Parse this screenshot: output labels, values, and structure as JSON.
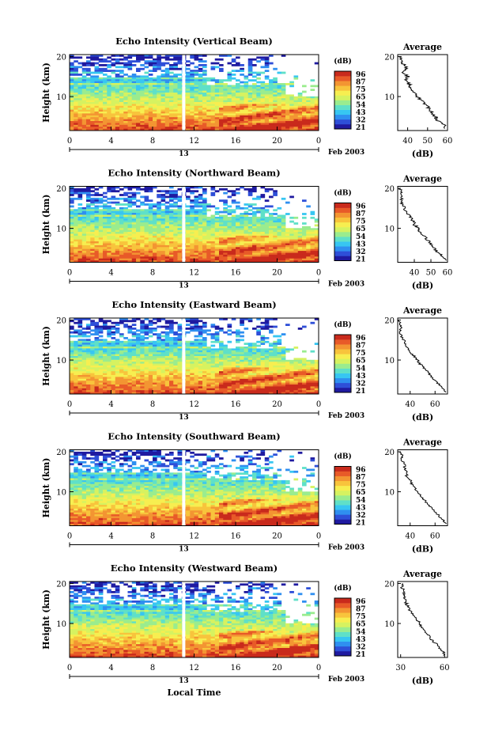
{
  "figure": {
    "xlabel": "Local Time",
    "date_label": "Feb 2003",
    "date_tick": "13",
    "colorbar_unit": "(dB)",
    "colorbar_ticks": [
      "96",
      "87",
      "75",
      "65",
      "54",
      "43",
      "32",
      "21"
    ],
    "profile_title": "Average",
    "profile_xlabel": "(dB)"
  },
  "colors": {
    "scale": [
      "#1f1aa0",
      "#2e4fd8",
      "#2f8ff0",
      "#37c6f2",
      "#5fe0c8",
      "#9aec8e",
      "#d6f260",
      "#f7ee50",
      "#f8c43c",
      "#f39532",
      "#e85a28",
      "#c92a1c"
    ],
    "divider": "#ffffff",
    "frame": "#000000"
  },
  "chart_data": [
    {
      "type": "heatmap",
      "title": "Echo Intensity (Vertical Beam)",
      "ylabel": "Height (km)",
      "xlim": [
        0,
        24
      ],
      "ylim": [
        1.5,
        20.5
      ],
      "x_ticks": [
        "0",
        "4",
        "8",
        "12",
        "16",
        "20",
        "0"
      ],
      "y_ticks": [
        "20",
        "10"
      ],
      "colorbar_range_db": [
        21,
        96
      ],
      "profile": {
        "type": "line",
        "xlim": [
          35,
          60
        ],
        "x_ticks": [
          "40",
          "50",
          "60"
        ],
        "y_ticks": [
          "20",
          "10"
        ],
        "points": [
          [
            59,
            2
          ],
          [
            58,
            3
          ],
          [
            55,
            4
          ],
          [
            54,
            5
          ],
          [
            52,
            6
          ],
          [
            51,
            7
          ],
          [
            49,
            8
          ],
          [
            47,
            9
          ],
          [
            45,
            10
          ],
          [
            43,
            11
          ],
          [
            42,
            12
          ],
          [
            41,
            13
          ],
          [
            39,
            14
          ],
          [
            40,
            15
          ],
          [
            38,
            16
          ],
          [
            40,
            17
          ],
          [
            38,
            18
          ],
          [
            37,
            19
          ],
          [
            37,
            20
          ]
        ]
      }
    },
    {
      "type": "heatmap",
      "title": "Echo Intensity (Northward Beam)",
      "ylabel": "Height (km)",
      "xlim": [
        0,
        24
      ],
      "ylim": [
        1.5,
        20.5
      ],
      "x_ticks": [
        "0",
        "4",
        "8",
        "12",
        "16",
        "20",
        "0"
      ],
      "y_ticks": [
        "20",
        "10"
      ],
      "colorbar_range_db": [
        21,
        96
      ],
      "profile": {
        "type": "line",
        "xlim": [
          30,
          60
        ],
        "x_ticks": [
          "40",
          "50",
          "60"
        ],
        "y_ticks": [
          "20",
          "10"
        ],
        "points": [
          [
            59,
            2
          ],
          [
            57,
            3
          ],
          [
            54,
            4
          ],
          [
            52,
            5
          ],
          [
            50,
            6
          ],
          [
            48,
            7
          ],
          [
            46,
            8
          ],
          [
            44,
            9
          ],
          [
            42,
            10
          ],
          [
            40,
            11
          ],
          [
            39,
            12
          ],
          [
            37,
            13
          ],
          [
            35,
            14
          ],
          [
            34,
            15
          ],
          [
            33,
            16
          ],
          [
            32,
            17
          ],
          [
            33,
            18
          ],
          [
            32,
            19
          ],
          [
            31,
            20
          ]
        ]
      }
    },
    {
      "type": "heatmap",
      "title": "Echo Intensity (Eastward Beam)",
      "ylabel": "Height (km)",
      "xlim": [
        0,
        24
      ],
      "ylim": [
        1.5,
        20.5
      ],
      "x_ticks": [
        "0",
        "4",
        "8",
        "12",
        "16",
        "20",
        "0"
      ],
      "y_ticks": [
        "20",
        "10"
      ],
      "colorbar_range_db": [
        21,
        96
      ],
      "profile": {
        "type": "line",
        "xlim": [
          30,
          70
        ],
        "x_ticks": [
          "40",
          "60"
        ],
        "y_ticks": [
          "20",
          "10"
        ],
        "points": [
          [
            69,
            2
          ],
          [
            66,
            3
          ],
          [
            63,
            4
          ],
          [
            60,
            5
          ],
          [
            57,
            6
          ],
          [
            54,
            7
          ],
          [
            51,
            8
          ],
          [
            48,
            9
          ],
          [
            46,
            10
          ],
          [
            43,
            11
          ],
          [
            40,
            12
          ],
          [
            38,
            13
          ],
          [
            36,
            14
          ],
          [
            35,
            15
          ],
          [
            33,
            16
          ],
          [
            32,
            17
          ],
          [
            33,
            18
          ],
          [
            32,
            19
          ],
          [
            31,
            20
          ]
        ]
      }
    },
    {
      "type": "heatmap",
      "title": "Echo Intensity (Southward Beam)",
      "ylabel": "Height (km)",
      "xlim": [
        0,
        24
      ],
      "ylim": [
        1.5,
        20.5
      ],
      "x_ticks": [
        "0",
        "4",
        "8",
        "12",
        "16",
        "20",
        "0"
      ],
      "y_ticks": [
        "20",
        "10"
      ],
      "colorbar_range_db": [
        21,
        96
      ],
      "profile": {
        "type": "line",
        "xlim": [
          30,
          70
        ],
        "x_ticks": [
          "40",
          "60"
        ],
        "y_ticks": [
          "20",
          "10"
        ],
        "points": [
          [
            68,
            2
          ],
          [
            66,
            3
          ],
          [
            63,
            4
          ],
          [
            60,
            5
          ],
          [
            57,
            6
          ],
          [
            54,
            7
          ],
          [
            51,
            8
          ],
          [
            48,
            9
          ],
          [
            46,
            10
          ],
          [
            44,
            11
          ],
          [
            41,
            12
          ],
          [
            40,
            13
          ],
          [
            37,
            14
          ],
          [
            38,
            15
          ],
          [
            35,
            16
          ],
          [
            36,
            17
          ],
          [
            33,
            18
          ],
          [
            34,
            19
          ],
          [
            32,
            20
          ]
        ]
      }
    },
    {
      "type": "heatmap",
      "title": "Echo Intensity (Westward Beam)",
      "ylabel": "Height (km)",
      "xlim": [
        0,
        24
      ],
      "ylim": [
        1.5,
        20.5
      ],
      "x_ticks": [
        "0",
        "4",
        "8",
        "12",
        "16",
        "20",
        "0"
      ],
      "y_ticks": [
        "20",
        "10"
      ],
      "colorbar_range_db": [
        21,
        96
      ],
      "profile": {
        "type": "line",
        "xlim": [
          28,
          62
        ],
        "x_ticks": [
          "30",
          "60"
        ],
        "y_ticks": [
          "20",
          "10"
        ],
        "points": [
          [
            60,
            2
          ],
          [
            59,
            3
          ],
          [
            56,
            4
          ],
          [
            54,
            5
          ],
          [
            51,
            6
          ],
          [
            49,
            7
          ],
          [
            47,
            8
          ],
          [
            45,
            9
          ],
          [
            43,
            10
          ],
          [
            41,
            11
          ],
          [
            39,
            12
          ],
          [
            37,
            13
          ],
          [
            35,
            14
          ],
          [
            34,
            15
          ],
          [
            33,
            16
          ],
          [
            32,
            17
          ],
          [
            33,
            18
          ],
          [
            31,
            19
          ],
          [
            31,
            20
          ]
        ]
      }
    }
  ]
}
